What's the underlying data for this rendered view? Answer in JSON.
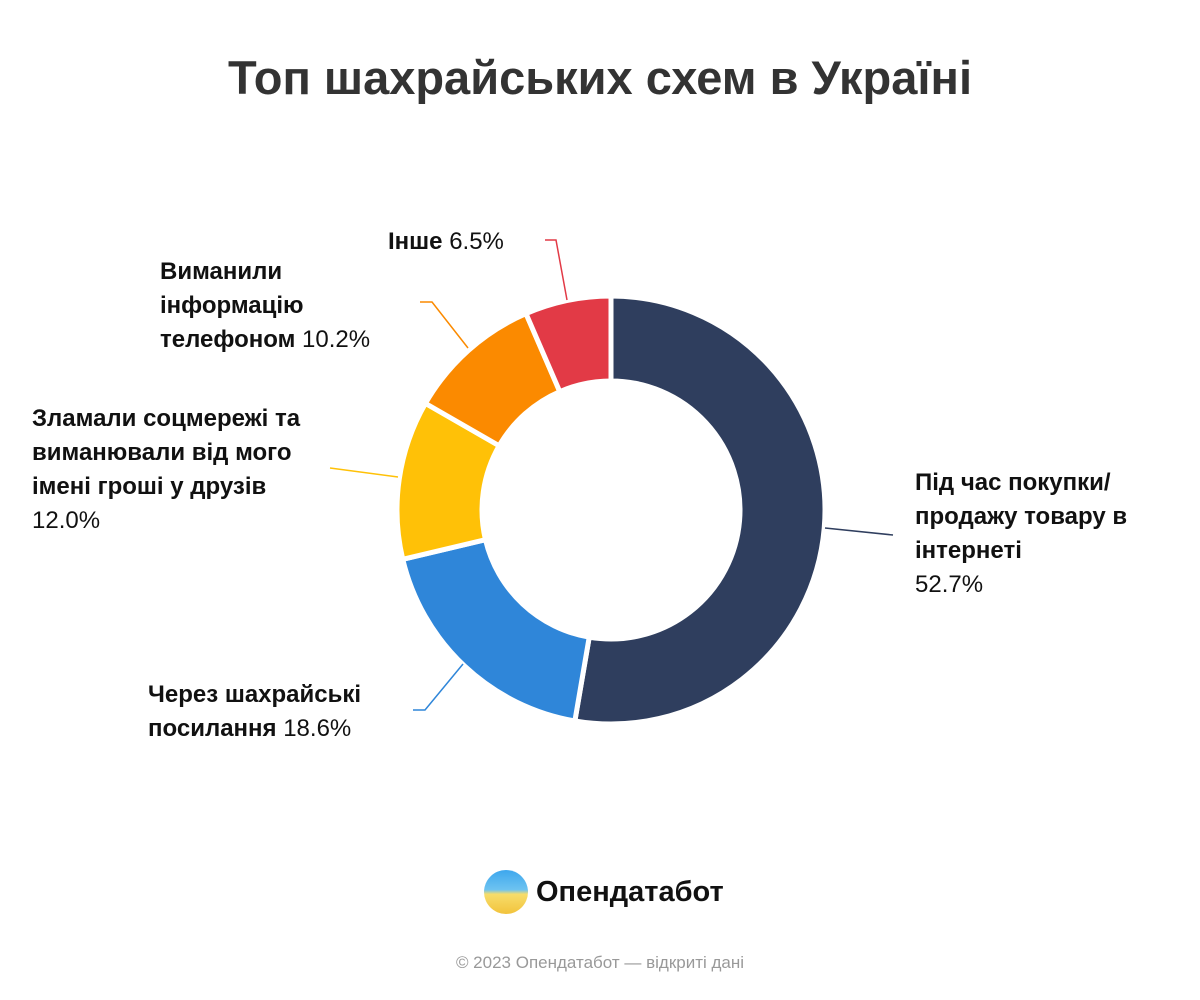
{
  "chart_data": {
    "type": "pie",
    "donut": true,
    "title": "Топ шахрайських схем в Україні",
    "slices": [
      {
        "name": "Під час покупки/продажу товару в інтернеті",
        "value": 52.7,
        "label": "52.7%",
        "color": "#2f3e5e"
      },
      {
        "name": "Через шахрайські посилання",
        "value": 18.6,
        "label": "18.6%",
        "color": "#2f86d9"
      },
      {
        "name": "Зламали соцмережі та виманювали від мого імені гроші у друзів",
        "value": 12.0,
        "label": "12.0%",
        "color": "#ffc107"
      },
      {
        "name": "Виманили інформацію телефоном",
        "value": 10.2,
        "label": "10.2%",
        "color": "#fb8a00"
      },
      {
        "name": "Інше",
        "value": 6.5,
        "label": "6.5%",
        "color": "#e23a46"
      }
    ]
  },
  "brand": {
    "name": "Опендатабот"
  },
  "footer": "© 2023 Опендатабот — відкриті дані"
}
